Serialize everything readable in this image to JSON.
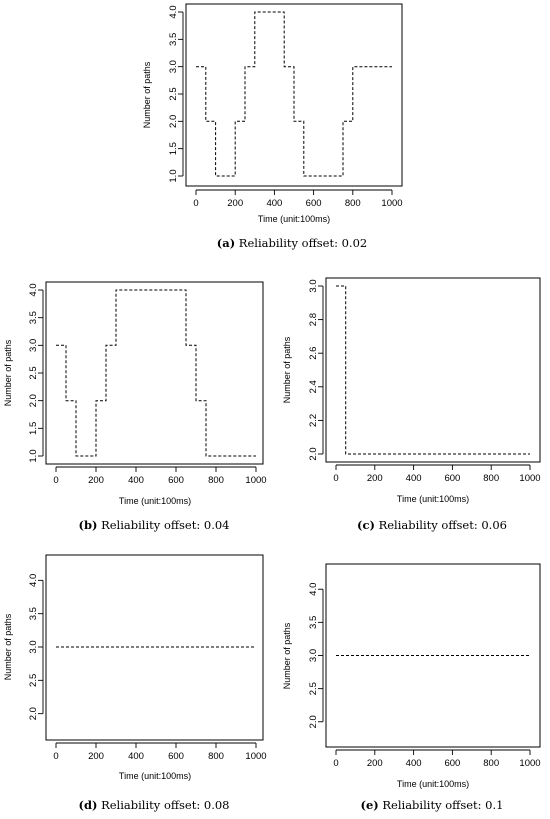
{
  "chart_data": [
    {
      "id": "a",
      "type": "line",
      "xlabel": "Time (unit:100ms)",
      "ylabel": "Number of paths",
      "xlim": [
        0,
        1000
      ],
      "ylim": [
        1,
        4
      ],
      "xticks": [
        "0",
        "200",
        "400",
        "600",
        "800",
        "1000"
      ],
      "yticks": [
        "1.0",
        "1.5",
        "2.0",
        "2.5",
        "3.0",
        "3.5",
        "4.0"
      ],
      "line_style": "dashed step",
      "series": [
        {
          "x": [
            0,
            50,
            50,
            100,
            100,
            200,
            200,
            250,
            250,
            300,
            300,
            450,
            450,
            500,
            500,
            550,
            550,
            750,
            750,
            800,
            800,
            1000
          ],
          "y": [
            3,
            3,
            2,
            2,
            1,
            1,
            2,
            2,
            3,
            3,
            4,
            4,
            3,
            3,
            2,
            2,
            1,
            1,
            2,
            2,
            3,
            3
          ]
        }
      ],
      "caption": {
        "letter": "(a)",
        "text": "Reliability offset: 0.02"
      }
    },
    {
      "id": "b",
      "type": "line",
      "xlabel": "Time (unit:100ms)",
      "ylabel": "Number of paths",
      "xlim": [
        0,
        1000
      ],
      "ylim": [
        1,
        4
      ],
      "xticks": [
        "0",
        "200",
        "400",
        "600",
        "800",
        "1000"
      ],
      "yticks": [
        "1.0",
        "1.5",
        "2.0",
        "2.5",
        "3.0",
        "3.5",
        "4.0"
      ],
      "line_style": "dashed step",
      "series": [
        {
          "x": [
            0,
            50,
            50,
            100,
            100,
            200,
            200,
            250,
            250,
            300,
            300,
            650,
            650,
            700,
            700,
            750,
            750,
            1000
          ],
          "y": [
            3,
            3,
            2,
            2,
            1,
            1,
            2,
            2,
            3,
            3,
            4,
            4,
            3,
            3,
            2,
            2,
            1,
            1
          ]
        }
      ],
      "caption": {
        "letter": "(b)",
        "text": "Reliability offset: 0.04"
      }
    },
    {
      "id": "c",
      "type": "line",
      "xlabel": "Time (unit:100ms)",
      "ylabel": "Number of paths",
      "xlim": [
        0,
        1000
      ],
      "ylim": [
        2,
        3
      ],
      "xticks": [
        "0",
        "200",
        "400",
        "600",
        "800",
        "1000"
      ],
      "yticks": [
        "2.0",
        "2.2",
        "2.4",
        "2.6",
        "2.8",
        "3.0"
      ],
      "line_style": "dashed step",
      "series": [
        {
          "x": [
            0,
            50,
            50,
            1000
          ],
          "y": [
            3,
            3,
            2,
            2
          ]
        }
      ],
      "caption": {
        "letter": "(c)",
        "text": "Reliability offset: 0.06"
      }
    },
    {
      "id": "d",
      "type": "line",
      "xlabel": "Time (unit:100ms)",
      "ylabel": "Number of paths",
      "xlim": [
        0,
        1000
      ],
      "ylim": [
        1.74,
        4.26
      ],
      "xticks": [
        "0",
        "200",
        "400",
        "600",
        "800",
        "1000"
      ],
      "yticks": [
        "2.0",
        "2.5",
        "3.0",
        "3.5",
        "4.0"
      ],
      "line_style": "dashed",
      "series": [
        {
          "x": [
            0,
            1000
          ],
          "y": [
            3,
            3
          ]
        }
      ],
      "caption": {
        "letter": "(d)",
        "text": "Reliability offset: 0.08"
      }
    },
    {
      "id": "e",
      "type": "line",
      "xlabel": "Time (unit:100ms)",
      "ylabel": "Number of paths",
      "xlim": [
        0,
        1000
      ],
      "ylim": [
        1.74,
        4.26
      ],
      "xticks": [
        "0",
        "200",
        "400",
        "600",
        "800",
        "1000"
      ],
      "yticks": [
        "2.0",
        "2.5",
        "3.0",
        "3.5",
        "4.0"
      ],
      "line_style": "dashed",
      "series": [
        {
          "x": [
            0,
            1000
          ],
          "y": [
            3,
            3
          ]
        }
      ],
      "caption": {
        "letter": "(e)",
        "text": "Reliability offset: 0.1"
      }
    }
  ]
}
